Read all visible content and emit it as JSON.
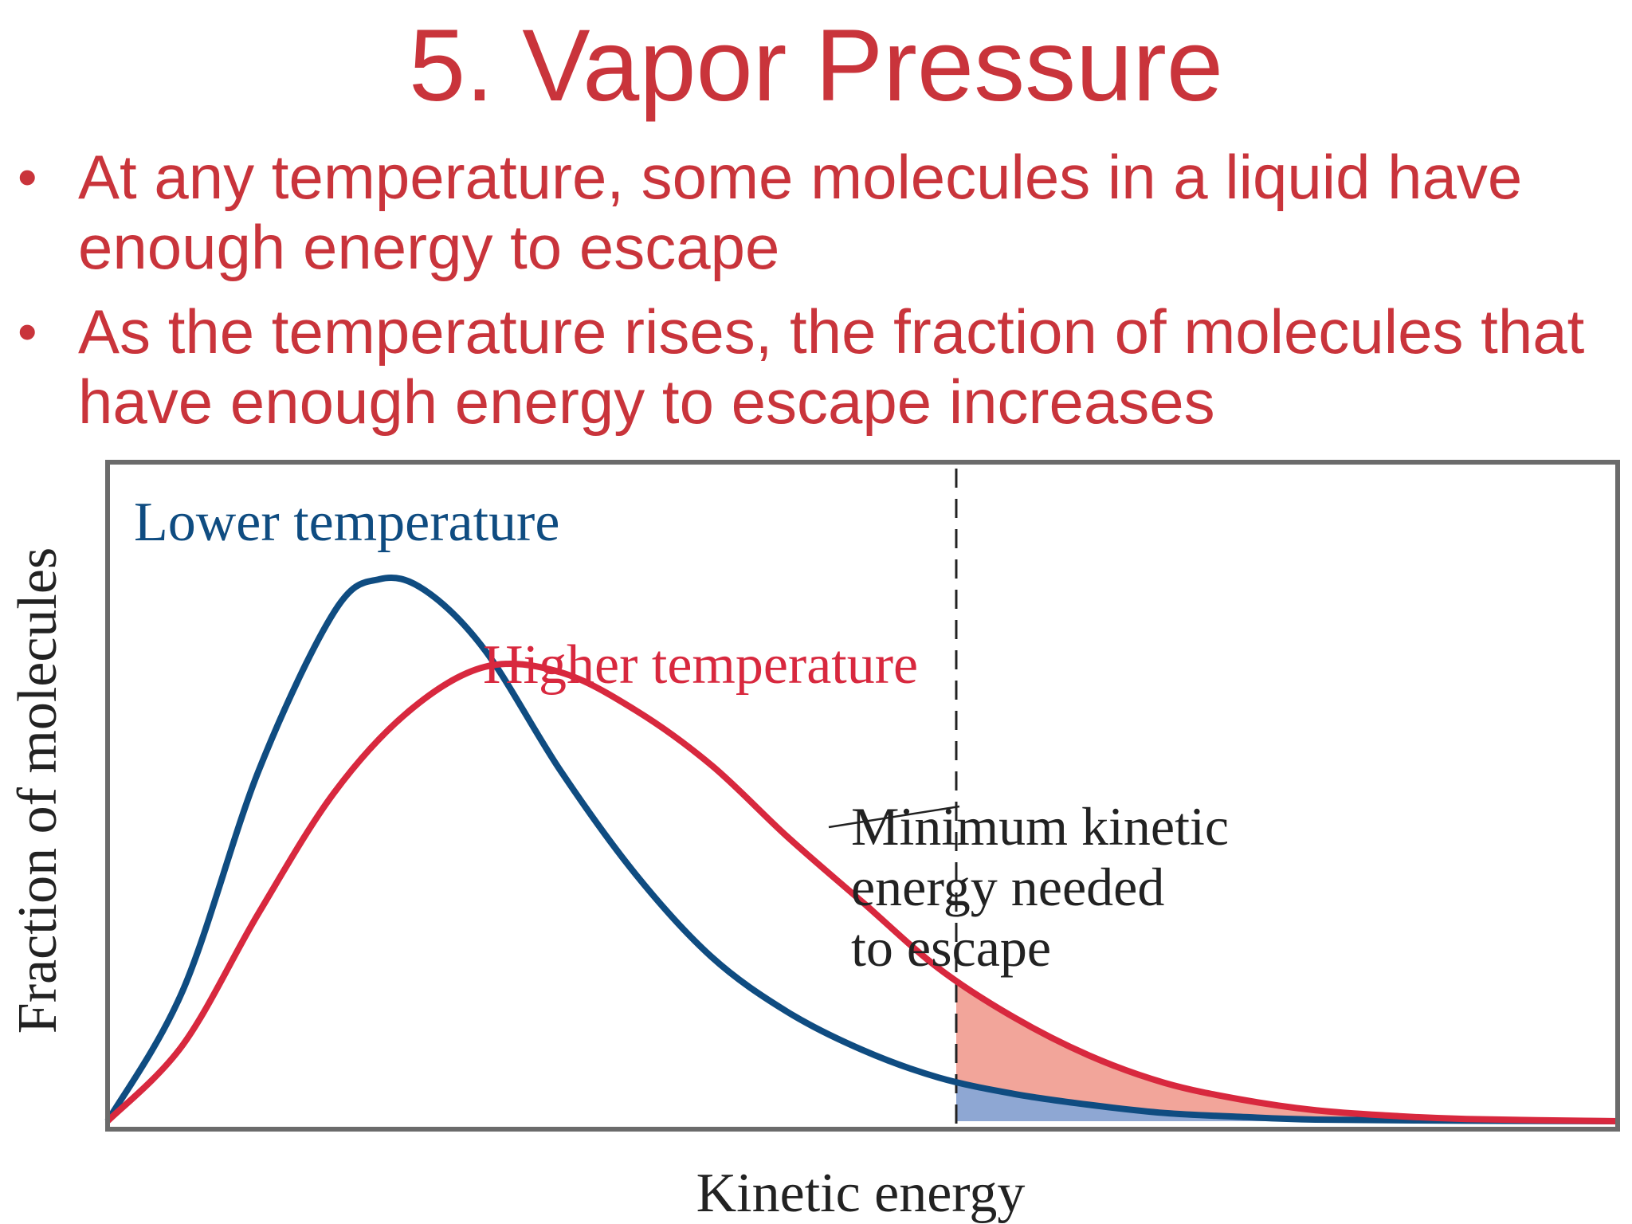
{
  "slide": {
    "title": "5. Vapor Pressure",
    "bullet_symbol": "•",
    "bullets": [
      "At any temperature, some molecules in a liquid have enough energy to escape",
      "As the temperature rises, the fraction of molecules that have enough energy to escape increases"
    ]
  },
  "colors": {
    "text_red": "#c9343b",
    "lower_series": "#0f4c81",
    "higher_series": "#d8283e",
    "lower_fill": "#8ea7d3",
    "higher_fill": "#f2a59a",
    "frame": "#6b6b6b",
    "annotation": "#222222"
  },
  "chart_data": {
    "type": "line",
    "xlabel": "Kinetic energy",
    "ylabel": "Fraction of molecules",
    "grid": false,
    "ticks": false,
    "xlim": [
      0,
      10
    ],
    "ylim": [
      0,
      1
    ],
    "series": [
      {
        "name": "Lower temperature",
        "x": [
          0,
          0.5,
          1.0,
          1.5,
          1.8,
          2.1,
          2.5,
          3.0,
          3.5,
          4.0,
          4.5,
          5.0,
          5.5,
          6.0,
          6.5,
          7.0,
          7.5,
          8.0,
          9.0,
          10.0
        ],
        "y": [
          0,
          0.24,
          0.64,
          0.93,
          0.99,
          0.97,
          0.86,
          0.64,
          0.45,
          0.3,
          0.2,
          0.13,
          0.08,
          0.05,
          0.03,
          0.015,
          0.008,
          0.003,
          0.001,
          0
        ]
      },
      {
        "name": "Higher temperature",
        "x": [
          0,
          0.5,
          1.0,
          1.5,
          2.0,
          2.5,
          3.0,
          3.5,
          4.0,
          4.5,
          5.0,
          5.5,
          6.0,
          6.5,
          7.0,
          7.5,
          8.0,
          8.5,
          9.0,
          10.0
        ],
        "y": [
          0,
          0.14,
          0.38,
          0.6,
          0.75,
          0.83,
          0.82,
          0.75,
          0.65,
          0.52,
          0.4,
          0.28,
          0.19,
          0.12,
          0.07,
          0.04,
          0.02,
          0.01,
          0.004,
          0
        ]
      }
    ],
    "threshold_x": 5.62,
    "annotation": [
      "Minimum kinetic",
      "energy needed",
      "to escape"
    ]
  }
}
